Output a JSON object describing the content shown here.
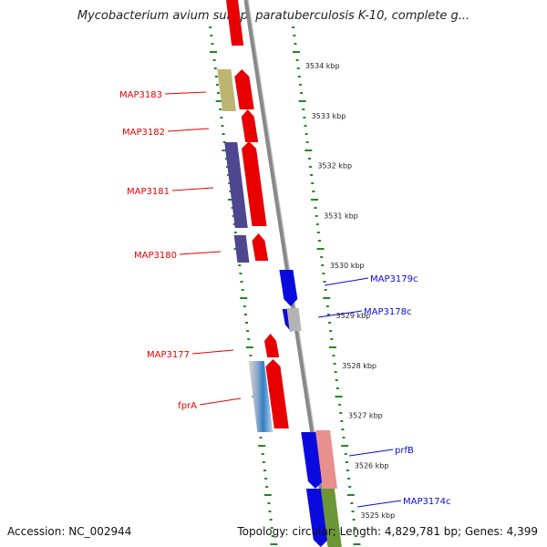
{
  "header": {
    "title": "Mycobacterium avium subsp. paratuberculosis K-10, complete g..."
  },
  "footer": {
    "accession": "Accession: NC_002944",
    "summary": "Topology: circular; Length: 4,829,781 bp; Genes: 4,399"
  },
  "colors": {
    "forward": "#e80000",
    "reverse": "#0a0adf",
    "backbone": "#888888",
    "ticks": "#1e8a1e"
  },
  "scale": {
    "ticks": [
      {
        "kbp": 3534,
        "label": "3534 kbp"
      },
      {
        "kbp": 3533,
        "label": "3533 kbp"
      },
      {
        "kbp": 3532,
        "label": "3532 kbp"
      },
      {
        "kbp": 3531,
        "label": "3531 kbp"
      },
      {
        "kbp": 3530,
        "label": "3530 kbp"
      },
      {
        "kbp": 3529,
        "label": "3529 kbp"
      },
      {
        "kbp": 3528,
        "label": "3528 kbp"
      },
      {
        "kbp": 3527,
        "label": "3527 kbp"
      },
      {
        "kbp": 3526,
        "label": "3526 kbp"
      },
      {
        "kbp": 3525,
        "label": "3525 kbp"
      }
    ]
  },
  "genes": [
    {
      "label": "MAP3183",
      "strand": "forward"
    },
    {
      "label": "MAP3182",
      "strand": "forward"
    },
    {
      "label": "MAP3181",
      "strand": "forward"
    },
    {
      "label": "MAP3180",
      "strand": "forward"
    },
    {
      "label": "MAP3177",
      "strand": "forward"
    },
    {
      "label": "fprA",
      "strand": "forward"
    },
    {
      "label": "MAP3179c",
      "strand": "reverse"
    },
    {
      "label": "MAP3178c",
      "strand": "reverse"
    },
    {
      "label": "prfB",
      "strand": "reverse"
    },
    {
      "label": "MAP3174c",
      "strand": "reverse"
    }
  ]
}
